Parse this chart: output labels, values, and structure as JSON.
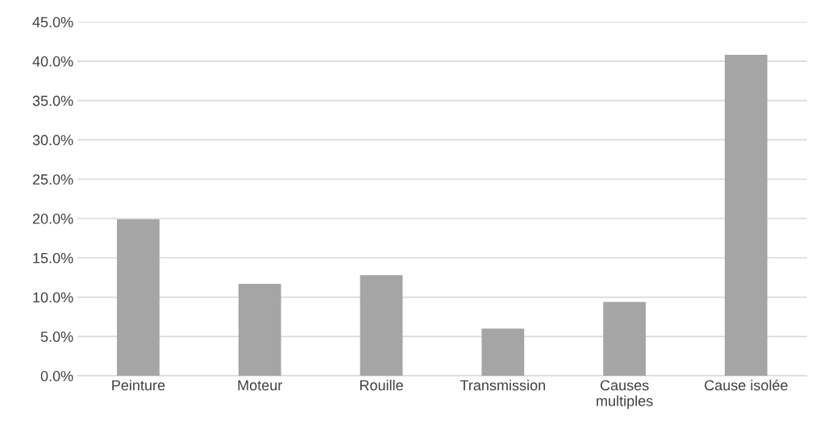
{
  "chart_data": {
    "type": "bar",
    "categories": [
      "Peinture",
      "Moteur",
      "Rouille",
      "Transmission",
      "Causes\nmultiples",
      "Cause isolée"
    ],
    "values": [
      19.9,
      11.7,
      12.8,
      6.0,
      9.4,
      40.8
    ],
    "color": "#a5a5a5",
    "ylim": [
      0,
      45
    ],
    "yticks": [
      {
        "value": 0,
        "label": "0.0%"
      },
      {
        "value": 5,
        "label": "5.0%"
      },
      {
        "value": 10,
        "label": "10.0%"
      },
      {
        "value": 15,
        "label": "15.0%"
      },
      {
        "value": 20,
        "label": "20.0%"
      },
      {
        "value": 25,
        "label": "25.0%"
      },
      {
        "value": 30,
        "label": "30.0%"
      },
      {
        "value": 35,
        "label": "35.0%"
      },
      {
        "value": 40,
        "label": "40.0%"
      },
      {
        "value": 45,
        "label": "45.0%"
      }
    ],
    "grid": "y"
  }
}
